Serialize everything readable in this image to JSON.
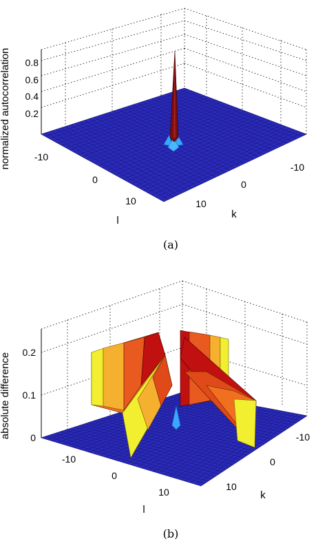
{
  "chart_data": [
    {
      "panel": "a",
      "type": "surface",
      "caption": "(a)",
      "zlabel": "normalized autocorrelation",
      "xlabel": "l",
      "ylabel": "k",
      "x_ticks": [
        "-10",
        "0",
        "10"
      ],
      "y_ticks": [
        "-10",
        "0",
        "10"
      ],
      "z_ticks": [
        "0.2",
        "0.4",
        "0.6",
        "0.8"
      ],
      "x_range": [
        -15,
        15
      ],
      "y_range": [
        -15,
        15
      ],
      "z_range": [
        0,
        1
      ],
      "grid": true,
      "features": [
        {
          "l": 0,
          "k": 0,
          "value": 1.0
        },
        {
          "l": 0,
          "k": -1,
          "value": 0.08
        },
        {
          "l": 1,
          "k": 0,
          "value": 0.08
        },
        {
          "l": 0,
          "k": 1,
          "value": 0.08
        },
        {
          "l": -1,
          "k": 0,
          "value": 0.08
        }
      ],
      "background_value": 0
    },
    {
      "panel": "b",
      "type": "surface",
      "caption": "(b)",
      "zlabel": "absolute difference",
      "xlabel": "l",
      "ylabel": "k",
      "x_ticks": [
        "-10",
        "0",
        "10"
      ],
      "y_ticks": [
        "-10",
        "0",
        "10"
      ],
      "z_ticks": [
        "0",
        "0.1",
        "0.2"
      ],
      "x_range": [
        -15,
        15
      ],
      "y_range": [
        -15,
        15
      ],
      "z_range": [
        0,
        0.25
      ],
      "grid": true,
      "ridges": [
        {
          "along": "k",
          "fixed_l": 0,
          "from": -15,
          "to": -2,
          "max": 0.22,
          "min_at_end": 0.12
        },
        {
          "along": "l",
          "fixed_k": 0,
          "from": -15,
          "to": -2,
          "max": 0.22,
          "min_at_end": 0.12
        },
        {
          "along": "l",
          "fixed_k": 0,
          "from": 2,
          "to": 15,
          "max": 0.22,
          "min_at_end": 0.12
        },
        {
          "along": "k",
          "fixed_l": 0,
          "from": 2,
          "to": 15,
          "max": 0.22,
          "min_at_end": 0.12
        }
      ],
      "background_value": 0
    }
  ],
  "colors": {
    "floor": "#2a2ab8",
    "peak": "#7a0d0d",
    "low_bump": "#3aa8ff",
    "ridge_hot": "#c01010",
    "ridge_warm": "#f07020",
    "ridge_yellow": "#f2ee30"
  }
}
